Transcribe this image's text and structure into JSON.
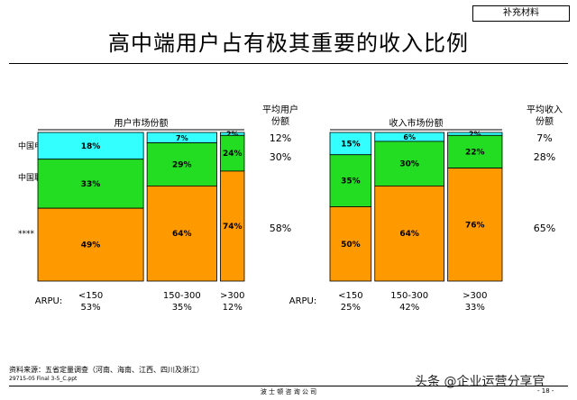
{
  "header": {
    "tag": "补充材料",
    "title": "高中端用户占有极其重要的收入比例"
  },
  "colors": {
    "telecom": "#33ffff",
    "unicom": "#22dd22",
    "other": "#ff9900"
  },
  "row_labels": [
    "中国电信",
    "中国联通",
    "****"
  ],
  "arpu_label": "ARPU:",
  "chart_data": [
    {
      "type": "bar",
      "title": "用户市场份额",
      "categories": [
        "<150",
        "150-300",
        ">300"
      ],
      "category_weights": [
        "53%",
        "35%",
        "12%"
      ],
      "weight_values": [
        53,
        35,
        12
      ],
      "series": [
        {
          "name": "中国电信",
          "values": [
            18,
            7,
            2
          ]
        },
        {
          "name": "中国联通",
          "values": [
            33,
            29,
            24
          ]
        },
        {
          "name": "****",
          "values": [
            49,
            64,
            74
          ]
        }
      ],
      "segment_labels": [
        [
          "18%",
          "33%",
          "49%"
        ],
        [
          "7%",
          "29%",
          "64%"
        ],
        [
          "2%",
          "24%",
          "74%"
        ]
      ],
      "avg_header": "平均用户份额",
      "avg_values": [
        "12%",
        "30%",
        "58%"
      ]
    },
    {
      "type": "bar",
      "title": "收入市场份额",
      "categories": [
        "<150",
        "150-300",
        ">300"
      ],
      "category_weights": [
        "25%",
        "42%",
        "33%"
      ],
      "weight_values": [
        25,
        42,
        33
      ],
      "series": [
        {
          "name": "中国电信",
          "values": [
            15,
            6,
            2
          ]
        },
        {
          "name": "中国联通",
          "values": [
            35,
            30,
            22
          ]
        },
        {
          "name": "****",
          "values": [
            50,
            64,
            76
          ]
        }
      ],
      "segment_labels": [
        [
          "15%",
          "35%",
          "50%"
        ],
        [
          "6%",
          "30%",
          "64%"
        ],
        [
          "2%",
          "22%",
          "76%"
        ]
      ],
      "avg_header": "平均收入份额",
      "avg_values": [
        "7%",
        "28%",
        "65%"
      ]
    }
  ],
  "footer": {
    "source": "资料来源：五省定量调查（河南、海南、江西、四川及浙江）",
    "file": "29715-05 Final 3-5_C.ppt",
    "company": "波 士 顿 咨 询 公 司",
    "page": "- 18 -",
    "watermark": "头条 @企业运营分享官"
  }
}
